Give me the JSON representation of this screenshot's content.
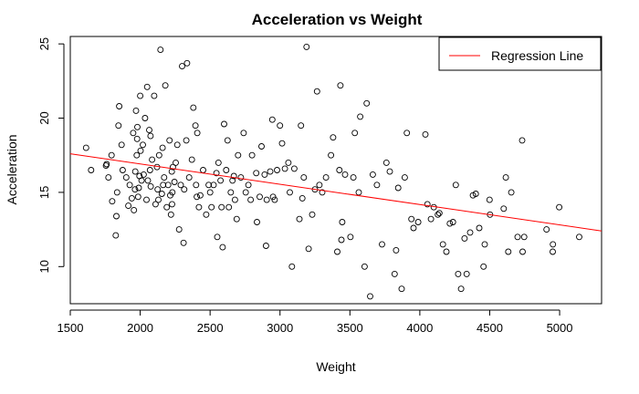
{
  "chart_data": {
    "type": "scatter",
    "title": "Acceleration vs Weight",
    "xlabel": "Weight",
    "ylabel": "Acceleration",
    "xlim": [
      1500,
      5300
    ],
    "ylim": [
      7.5,
      25.5
    ],
    "xticks": [
      1500,
      2000,
      2500,
      3000,
      3500,
      4000,
      4500,
      5000
    ],
    "yticks": [
      10,
      15,
      20,
      25
    ],
    "grid": false,
    "legend_position": "top-right",
    "colors": {
      "points": "#000000",
      "regression": "#ff0000"
    },
    "regression": {
      "name": "Regression Line",
      "start": {
        "x": 1500,
        "y": 17.6
      },
      "end": {
        "x": 5300,
        "y": 12.4
      }
    },
    "points": [
      [
        1613,
        18.0
      ],
      [
        1649,
        16.5
      ],
      [
        1755,
        16.8
      ],
      [
        1760,
        16.9
      ],
      [
        1773,
        16.0
      ],
      [
        1795,
        17.5
      ],
      [
        1800,
        14.4
      ],
      [
        1825,
        12.1
      ],
      [
        1830,
        13.4
      ],
      [
        1835,
        15.0
      ],
      [
        1845,
        19.5
      ],
      [
        1850,
        20.8
      ],
      [
        1867,
        18.2
      ],
      [
        1875,
        16.5
      ],
      [
        1900,
        16.0
      ],
      [
        1915,
        14.1
      ],
      [
        1925,
        15.5
      ],
      [
        1940,
        14.6
      ],
      [
        1950,
        19.0
      ],
      [
        1955,
        13.8
      ],
      [
        1963,
        15.2
      ],
      [
        1965,
        16.4
      ],
      [
        1970,
        20.5
      ],
      [
        1975,
        17.5
      ],
      [
        1978,
        18.6
      ],
      [
        1980,
        19.4
      ],
      [
        1985,
        14.7
      ],
      [
        1990,
        15.3
      ],
      [
        1995,
        16.1
      ],
      [
        2000,
        21.5
      ],
      [
        2003,
        17.8
      ],
      [
        2010,
        15.8
      ],
      [
        2019,
        18.2
      ],
      [
        2025,
        16.2
      ],
      [
        2035,
        20.0
      ],
      [
        2045,
        14.5
      ],
      [
        2050,
        22.1
      ],
      [
        2055,
        15.8
      ],
      [
        2065,
        19.2
      ],
      [
        2070,
        16.5
      ],
      [
        2074,
        18.8
      ],
      [
        2075,
        15.4
      ],
      [
        2085,
        17.2
      ],
      [
        2100,
        21.5
      ],
      [
        2110,
        14.2
      ],
      [
        2120,
        16.7
      ],
      [
        2125,
        15.2
      ],
      [
        2130,
        14.5
      ],
      [
        2135,
        17.5
      ],
      [
        2145,
        24.6
      ],
      [
        2155,
        14.9
      ],
      [
        2160,
        18.0
      ],
      [
        2164,
        15.5
      ],
      [
        2171,
        16.0
      ],
      [
        2180,
        22.2
      ],
      [
        2190,
        14.0
      ],
      [
        2200,
        15.5
      ],
      [
        2210,
        18.5
      ],
      [
        2215,
        14.8
      ],
      [
        2220,
        13.5
      ],
      [
        2226,
        16.4
      ],
      [
        2228,
        14.2
      ],
      [
        2230,
        15.0
      ],
      [
        2234,
        16.7
      ],
      [
        2245,
        15.7
      ],
      [
        2254,
        17.0
      ],
      [
        2265,
        18.2
      ],
      [
        2278,
        12.5
      ],
      [
        2290,
        15.5
      ],
      [
        2300,
        23.5
      ],
      [
        2310,
        11.6
      ],
      [
        2315,
        15.2
      ],
      [
        2330,
        18.5
      ],
      [
        2335,
        23.7
      ],
      [
        2350,
        16.0
      ],
      [
        2370,
        17.2
      ],
      [
        2380,
        20.7
      ],
      [
        2395,
        19.5
      ],
      [
        2400,
        15.5
      ],
      [
        2405,
        14.7
      ],
      [
        2408,
        19.0
      ],
      [
        2420,
        14.0
      ],
      [
        2430,
        14.8
      ],
      [
        2450,
        16.5
      ],
      [
        2472,
        13.5
      ],
      [
        2490,
        15.5
      ],
      [
        2500,
        15.0
      ],
      [
        2510,
        14.0
      ],
      [
        2525,
        15.5
      ],
      [
        2545,
        16.3
      ],
      [
        2551,
        12.0
      ],
      [
        2560,
        17.0
      ],
      [
        2575,
        15.8
      ],
      [
        2582,
        14.0
      ],
      [
        2590,
        11.3
      ],
      [
        2600,
        19.6
      ],
      [
        2615,
        16.5
      ],
      [
        2625,
        18.5
      ],
      [
        2634,
        14.0
      ],
      [
        2648,
        15.0
      ],
      [
        2660,
        15.8
      ],
      [
        2670,
        16.1
      ],
      [
        2678,
        14.5
      ],
      [
        2690,
        13.2
      ],
      [
        2700,
        17.5
      ],
      [
        2720,
        16.0
      ],
      [
        2740,
        19.0
      ],
      [
        2755,
        15.0
      ],
      [
        2774,
        15.5
      ],
      [
        2790,
        14.5
      ],
      [
        2800,
        17.5
      ],
      [
        2830,
        16.3
      ],
      [
        2835,
        13.0
      ],
      [
        2855,
        14.7
      ],
      [
        2868,
        18.1
      ],
      [
        2890,
        16.2
      ],
      [
        2900,
        11.4
      ],
      [
        2905,
        14.5
      ],
      [
        2930,
        16.4
      ],
      [
        2945,
        19.9
      ],
      [
        2950,
        14.7
      ],
      [
        2962,
        14.5
      ],
      [
        2979,
        16.5
      ],
      [
        3000,
        19.5
      ],
      [
        3015,
        18.3
      ],
      [
        3035,
        16.6
      ],
      [
        3060,
        17.0
      ],
      [
        3070,
        15.0
      ],
      [
        3085,
        10.0
      ],
      [
        3102,
        16.6
      ],
      [
        3139,
        13.2
      ],
      [
        3150,
        19.5
      ],
      [
        3160,
        14.6
      ],
      [
        3170,
        16.0
      ],
      [
        3190,
        24.8
      ],
      [
        3205,
        11.2
      ],
      [
        3230,
        13.5
      ],
      [
        3250,
        15.2
      ],
      [
        3265,
        21.8
      ],
      [
        3282,
        15.5
      ],
      [
        3302,
        15.0
      ],
      [
        3329,
        16.0
      ],
      [
        3365,
        17.5
      ],
      [
        3380,
        18.7
      ],
      [
        3410,
        11.0
      ],
      [
        3425,
        16.5
      ],
      [
        3432,
        22.2
      ],
      [
        3439,
        11.8
      ],
      [
        3445,
        13.0
      ],
      [
        3465,
        16.2
      ],
      [
        3504,
        12.0
      ],
      [
        3525,
        16.0
      ],
      [
        3535,
        19.0
      ],
      [
        3563,
        15.0
      ],
      [
        3574,
        20.1
      ],
      [
        3605,
        10.0
      ],
      [
        3620,
        21.0
      ],
      [
        3645,
        8.0
      ],
      [
        3664,
        16.2
      ],
      [
        3693,
        15.5
      ],
      [
        3730,
        11.5
      ],
      [
        3761,
        17.0
      ],
      [
        3785,
        16.4
      ],
      [
        3820,
        9.5
      ],
      [
        3830,
        11.1
      ],
      [
        3845,
        15.3
      ],
      [
        3870,
        8.5
      ],
      [
        3892,
        16.0
      ],
      [
        3907,
        19.0
      ],
      [
        3940,
        13.2
      ],
      [
        3955,
        12.6
      ],
      [
        3988,
        13.0
      ],
      [
        4040,
        18.9
      ],
      [
        4054,
        14.2
      ],
      [
        4080,
        13.2
      ],
      [
        4100,
        14.0
      ],
      [
        4129,
        13.5
      ],
      [
        4140,
        13.6
      ],
      [
        4165,
        11.5
      ],
      [
        4190,
        11.0
      ],
      [
        4215,
        12.9
      ],
      [
        4237,
        13.0
      ],
      [
        4257,
        15.5
      ],
      [
        4274,
        9.5
      ],
      [
        4295,
        8.5
      ],
      [
        4320,
        11.9
      ],
      [
        4335,
        9.5
      ],
      [
        4360,
        12.3
      ],
      [
        4380,
        14.8
      ],
      [
        4400,
        14.9
      ],
      [
        4425,
        12.6
      ],
      [
        4456,
        10.0
      ],
      [
        4464,
        11.5
      ],
      [
        4499,
        14.5
      ],
      [
        4502,
        13.5
      ],
      [
        4600,
        13.9
      ],
      [
        4615,
        16.0
      ],
      [
        4633,
        11.0
      ],
      [
        4654,
        15.0
      ],
      [
        4699,
        12.0
      ],
      [
        4732,
        18.5
      ],
      [
        4735,
        11.0
      ],
      [
        4746,
        12.0
      ],
      [
        4906,
        12.5
      ],
      [
        4951,
        11.0
      ],
      [
        4952,
        11.5
      ],
      [
        4997,
        14.0
      ],
      [
        5140,
        12.0
      ]
    ]
  }
}
